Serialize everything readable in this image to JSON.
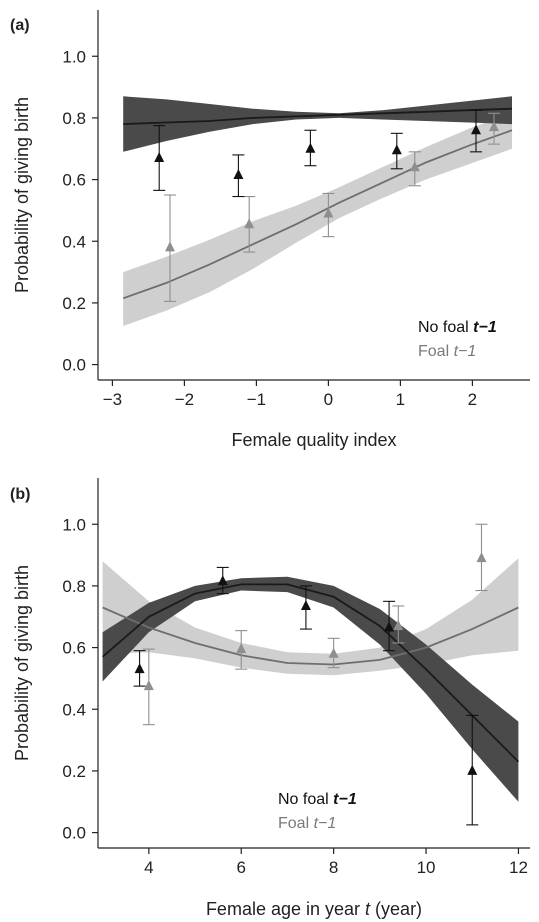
{
  "colors": {
    "no_foal_line": "#1a1a1a",
    "no_foal_band": "#4a4a4a",
    "no_foal_marker": "#111111",
    "foal_line": "#6e6e6e",
    "foal_band": "#cfcfcf",
    "foal_marker": "#8f8f8f",
    "axis": "#222222"
  },
  "chart_data": [
    {
      "type": "line",
      "panel_label": "(a)",
      "xlabel": "Female quality index",
      "ylabel": "Probability of giving birth",
      "xlim": [
        -3.2,
        2.8
      ],
      "ylim": [
        -0.05,
        1.15
      ],
      "xticks": [
        -3,
        -2,
        -1,
        0,
        1,
        2
      ],
      "yticks": [
        0.0,
        0.2,
        0.4,
        0.6,
        0.8,
        1.0
      ],
      "xtick_labels": [
        "−3",
        "−2",
        "−1",
        "0",
        "1",
        "2"
      ],
      "ytick_labels": [
        "0.0",
        "0.2",
        "0.4",
        "0.6",
        "0.8",
        "1.0"
      ],
      "legend": {
        "position": "bottom-right",
        "entries": [
          {
            "prefix": "No foal ",
            "suffix": "t−1",
            "style": "bold"
          },
          {
            "prefix": "Foal ",
            "suffix": "t−1",
            "style": "normal"
          }
        ]
      },
      "series": [
        {
          "key": "no_foal",
          "fit": {
            "x": [
              -2.85,
              -2.25,
              -1.65,
              -1.05,
              -0.45,
              0.15,
              0.75,
              1.35,
              1.95,
              2.55
            ],
            "y": [
              0.78,
              0.785,
              0.79,
              0.8,
              0.805,
              0.81,
              0.815,
              0.82,
              0.825,
              0.83
            ],
            "lower": [
              0.69,
              0.725,
              0.755,
              0.78,
              0.795,
              0.8,
              0.795,
              0.79,
              0.785,
              0.78
            ],
            "upper": [
              0.87,
              0.86,
              0.845,
              0.83,
              0.82,
              0.815,
              0.825,
              0.84,
              0.855,
              0.87
            ]
          },
          "points": {
            "x": [
              -2.35,
              -1.25,
              -0.25,
              0.95,
              2.05
            ],
            "y": [
              0.67,
              0.615,
              0.7,
              0.695,
              0.76
            ],
            "lower": [
              0.565,
              0.545,
              0.645,
              0.635,
              0.69
            ],
            "upper": [
              0.775,
              0.68,
              0.76,
              0.75,
              0.825
            ]
          }
        },
        {
          "key": "foal",
          "fit": {
            "x": [
              -2.85,
              -2.25,
              -1.65,
              -1.05,
              -0.45,
              0.15,
              0.75,
              1.35,
              1.95,
              2.55
            ],
            "y": [
              0.215,
              0.265,
              0.325,
              0.39,
              0.455,
              0.525,
              0.59,
              0.655,
              0.71,
              0.76
            ],
            "lower": [
              0.125,
              0.175,
              0.235,
              0.31,
              0.395,
              0.475,
              0.54,
              0.6,
              0.65,
              0.7
            ],
            "upper": [
              0.3,
              0.35,
              0.405,
              0.465,
              0.515,
              0.575,
              0.64,
              0.705,
              0.765,
              0.815
            ]
          },
          "points": {
            "x": [
              -2.2,
              -1.1,
              0.0,
              1.2,
              2.3
            ],
            "y": [
              0.38,
              0.455,
              0.49,
              0.64,
              0.77
            ],
            "lower": [
              0.205,
              0.365,
              0.415,
              0.58,
              0.715
            ],
            "upper": [
              0.55,
              0.545,
              0.555,
              0.69,
              0.815
            ]
          }
        }
      ]
    },
    {
      "type": "line",
      "panel_label": "(b)",
      "xlabel_prefix": "Female age in year ",
      "xlabel_italic": "t",
      "xlabel_suffix": " (year)",
      "ylabel": "Probability of giving birth",
      "xlim": [
        2.9,
        12.25
      ],
      "ylim": [
        -0.05,
        1.15
      ],
      "xticks": [
        4,
        6,
        8,
        10,
        12
      ],
      "yticks": [
        0.0,
        0.2,
        0.4,
        0.6,
        0.8,
        1.0
      ],
      "xtick_labels": [
        "4",
        "6",
        "8",
        "10",
        "12"
      ],
      "ytick_labels": [
        "0.0",
        "0.2",
        "0.4",
        "0.6",
        "0.8",
        "1.0"
      ],
      "legend": {
        "position": "bottom-center",
        "entries": [
          {
            "prefix": "No foal ",
            "suffix": "t−1",
            "style": "bold"
          },
          {
            "prefix": "Foal ",
            "suffix": "t−1",
            "style": "normal"
          }
        ]
      },
      "series": [
        {
          "key": "no_foal",
          "fit": {
            "x": [
              3.0,
              4.0,
              5.0,
              6.0,
              7.0,
              8.0,
              9.0,
              10.0,
              11.0,
              12.0
            ],
            "y": [
              0.57,
              0.7,
              0.775,
              0.805,
              0.805,
              0.765,
              0.67,
              0.53,
              0.38,
              0.23
            ],
            "lower": [
              0.49,
              0.65,
              0.75,
              0.785,
              0.78,
              0.73,
              0.61,
              0.45,
              0.27,
              0.1
            ],
            "upper": [
              0.65,
              0.745,
              0.8,
              0.825,
              0.83,
              0.8,
              0.725,
              0.61,
              0.48,
              0.36
            ]
          },
          "points": {
            "x": [
              3.8,
              5.6,
              7.4,
              9.2,
              11.0
            ],
            "y": [
              0.53,
              0.815,
              0.735,
              0.665,
              0.2
            ],
            "lower": [
              0.475,
              0.775,
              0.66,
              0.59,
              0.025
            ],
            "upper": [
              0.59,
              0.86,
              0.8,
              0.75,
              0.38
            ]
          }
        },
        {
          "key": "foal",
          "fit": {
            "x": [
              3.0,
              4.0,
              5.0,
              6.0,
              7.0,
              8.0,
              9.0,
              10.0,
              11.0,
              12.0
            ],
            "y": [
              0.73,
              0.665,
              0.615,
              0.575,
              0.55,
              0.545,
              0.56,
              0.6,
              0.66,
              0.73
            ],
            "lower": [
              0.58,
              0.585,
              0.565,
              0.535,
              0.515,
              0.51,
              0.525,
              0.545,
              0.575,
              0.59
            ],
            "upper": [
              0.88,
              0.75,
              0.665,
              0.615,
              0.585,
              0.58,
              0.6,
              0.66,
              0.755,
              0.89
            ]
          },
          "points": {
            "x": [
              4.0,
              6.0,
              8.0,
              9.4,
              11.2
            ],
            "y": [
              0.475,
              0.595,
              0.58,
              0.67,
              0.89
            ],
            "lower": [
              0.35,
              0.53,
              0.535,
              0.615,
              0.785
            ],
            "upper": [
              0.595,
              0.655,
              0.63,
              0.735,
              1.0
            ]
          }
        }
      ]
    }
  ]
}
